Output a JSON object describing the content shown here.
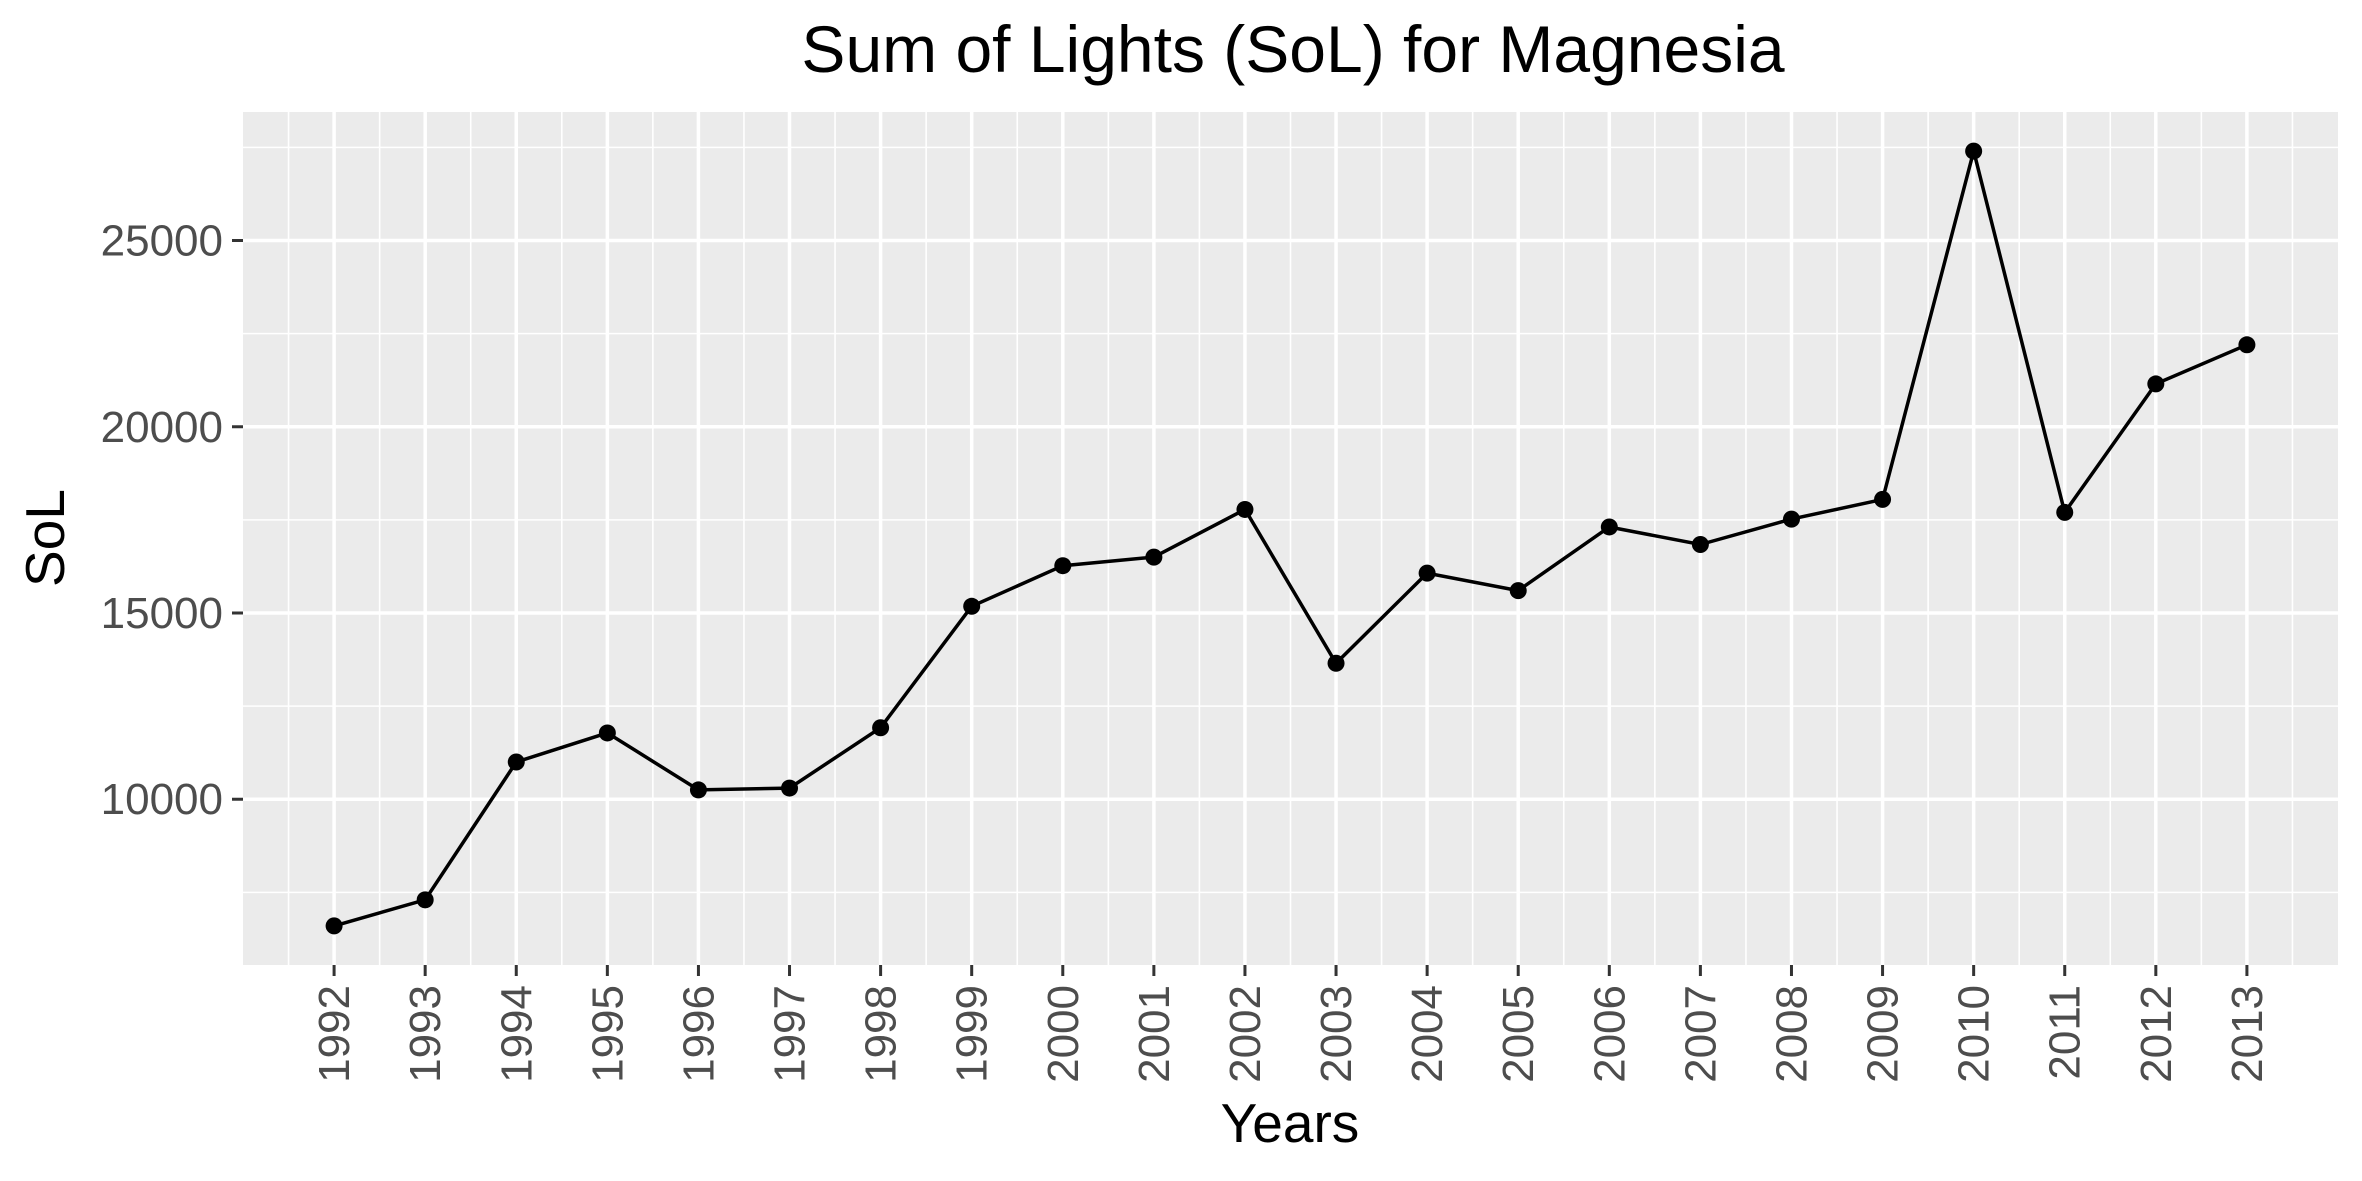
{
  "chart_data": {
    "type": "line",
    "title": "Sum of Lights (SoL) for Magnesia",
    "xlabel": "Years",
    "ylabel": "SoL",
    "x": [
      1992,
      1993,
      1994,
      1995,
      1996,
      1997,
      1998,
      1999,
      2000,
      2001,
      2002,
      2003,
      2004,
      2005,
      2006,
      2007,
      2008,
      2009,
      2010,
      2011,
      2012,
      2013
    ],
    "x_tick_labels": [
      "1992",
      "1993",
      "1994",
      "1995",
      "1996",
      "1997",
      "1998",
      "1999",
      "2000",
      "2001",
      "2002",
      "2003",
      "2004",
      "2005",
      "2006",
      "2007",
      "2008",
      "2009",
      "2010",
      "2011",
      "2012",
      "2013"
    ],
    "values": [
      6600,
      7300,
      11000,
      11780,
      10250,
      10300,
      11920,
      15180,
      16270,
      16500,
      17780,
      13650,
      16070,
      15600,
      17310,
      16840,
      17520,
      18050,
      27400,
      17700,
      21150,
      22200
    ],
    "y_ticks": [
      10000,
      15000,
      20000,
      25000
    ],
    "y_tick_labels": [
      "10000",
      "15000",
      "20000",
      "25000"
    ],
    "ylim": [
      5550,
      28450
    ],
    "xlim": [
      1991,
      2014
    ],
    "grid": true,
    "legend": "none",
    "colors": {
      "panel": "#ebebeb",
      "grid": "#ffffff",
      "line": "#000000",
      "point": "#000000"
    }
  }
}
